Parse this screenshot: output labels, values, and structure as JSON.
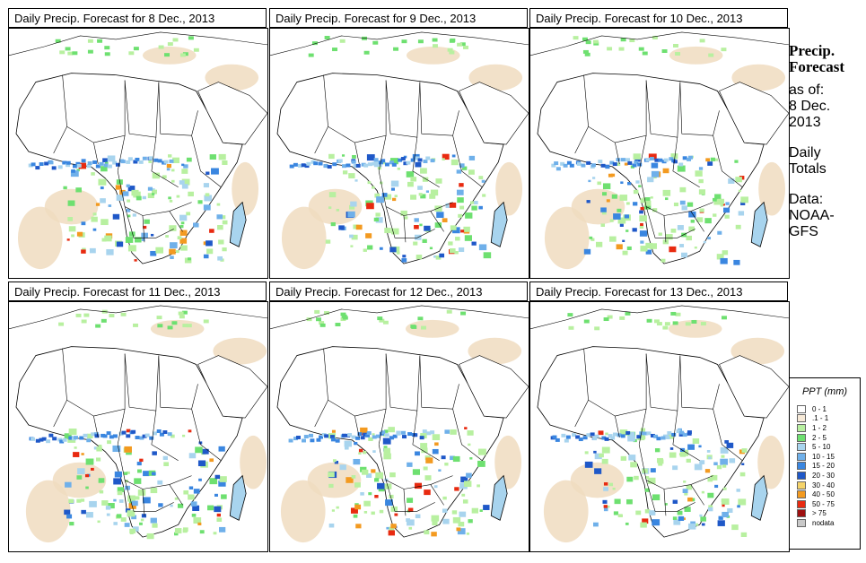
{
  "panels": [
    {
      "title": "Daily Precip. Forecast for  8 Dec., 2013"
    },
    {
      "title": "Daily Precip. Forecast for  9 Dec., 2013"
    },
    {
      "title": "Daily Precip. Forecast for  10 Dec., 2013"
    },
    {
      "title": "Daily Precip. Forecast for  11 Dec., 2013"
    },
    {
      "title": "Daily Precip. Forecast for  12 Dec., 2013"
    },
    {
      "title": "Daily Precip. Forecast for  13 Dec., 2013"
    }
  ],
  "info": {
    "heading1": "Precip.",
    "heading2": "Forecast",
    "asof": "as of:",
    "date1": "8 Dec.",
    "date2": "2013",
    "daily1": "Daily",
    "daily2": "Totals",
    "data1": "Data:",
    "data2": "NOAA-",
    "data3": "GFS"
  },
  "legend": {
    "title": "PPT (mm)",
    "items": [
      {
        "label": "0 - 1",
        "color": "#ffffff"
      },
      {
        "label": ".1 - 1",
        "color": "#f7ead8"
      },
      {
        "label": "1 - 2",
        "color": "#b8f0a0"
      },
      {
        "label": "2 - 5",
        "color": "#6ee070"
      },
      {
        "label": "5 - 10",
        "color": "#a8d4ee"
      },
      {
        "label": "10 - 15",
        "color": "#6fb0ea"
      },
      {
        "label": "15 - 20",
        "color": "#3a86e0"
      },
      {
        "label": "20 - 30",
        "color": "#1f58c8"
      },
      {
        "label": "30 - 40",
        "color": "#f5d36a"
      },
      {
        "label": "40 - 50",
        "color": "#f39a20"
      },
      {
        "label": "50 - 75",
        "color": "#e82a10"
      },
      {
        "label": "> 75",
        "color": "#9e1010"
      },
      {
        "label": "nodata",
        "color": "#c8c8c8"
      }
    ]
  }
}
